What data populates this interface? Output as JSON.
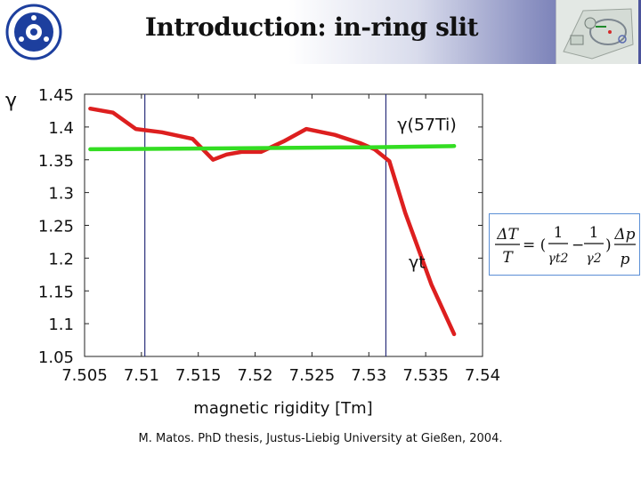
{
  "slide": {
    "title": "Introduction: in-ring slit",
    "caption": "M. Matos. PhD thesis, Justus-Liebig University at Gießen, 2004."
  },
  "colors": {
    "gamma_series": "#dd1f1f",
    "gamma_ion_series": "#33dd22",
    "vertical_markers": "#2a2f7a",
    "formula_border": "#5b8fd6"
  },
  "chart_data": {
    "type": "line",
    "xlabel": "magnetic rigidity [Tm]",
    "ylabel": "γ",
    "xlim": [
      7.505,
      7.54
    ],
    "ylim": [
      1.05,
      1.45
    ],
    "xticks": [
      "7.505",
      "7.51",
      "7.515",
      "7.52",
      "7.525",
      "7.53",
      "7.535",
      "7.54"
    ],
    "yticks": [
      "1.45",
      "1.4",
      "1.35",
      "1.3",
      "1.25",
      "1.2",
      "1.15",
      "1.1",
      "1.05"
    ],
    "grid": false,
    "vertical_lines": [
      7.5103,
      7.5315
    ],
    "series": [
      {
        "name": "γt",
        "color": "#dd1f1f",
        "x": [
          7.5055,
          7.5075,
          7.5095,
          7.5118,
          7.5145,
          7.5163,
          7.5175,
          7.5188,
          7.5205,
          7.5225,
          7.5245,
          7.527,
          7.5293,
          7.5305,
          7.5318,
          7.5332,
          7.5355,
          7.5375
        ],
        "values": [
          1.428,
          1.422,
          1.397,
          1.392,
          1.382,
          1.35,
          1.358,
          1.362,
          1.362,
          1.378,
          1.397,
          1.388,
          1.375,
          1.366,
          1.348,
          1.269,
          1.16,
          1.084
        ]
      },
      {
        "name": "γ(57Ti)",
        "color": "#33dd22",
        "x": [
          7.5055,
          7.53,
          7.5375
        ],
        "values": [
          1.366,
          1.369,
          1.371
        ]
      }
    ],
    "annotations": [
      {
        "text": "γ(57Ti)",
        "x": 7.5325,
        "y": 1.395
      },
      {
        "text": "γt",
        "x": 7.5335,
        "y": 1.185
      }
    ]
  },
  "formula": {
    "lhs_num": "ΔT",
    "lhs_den": "T",
    "equals_paren": "= (",
    "frac1_num": "1",
    "frac1_den": "γt2",
    "minus": "−",
    "frac2_num": "1",
    "frac2_den": "γ2",
    "close_paren": ")",
    "rhs_num": "Δp",
    "rhs_den": "p"
  }
}
